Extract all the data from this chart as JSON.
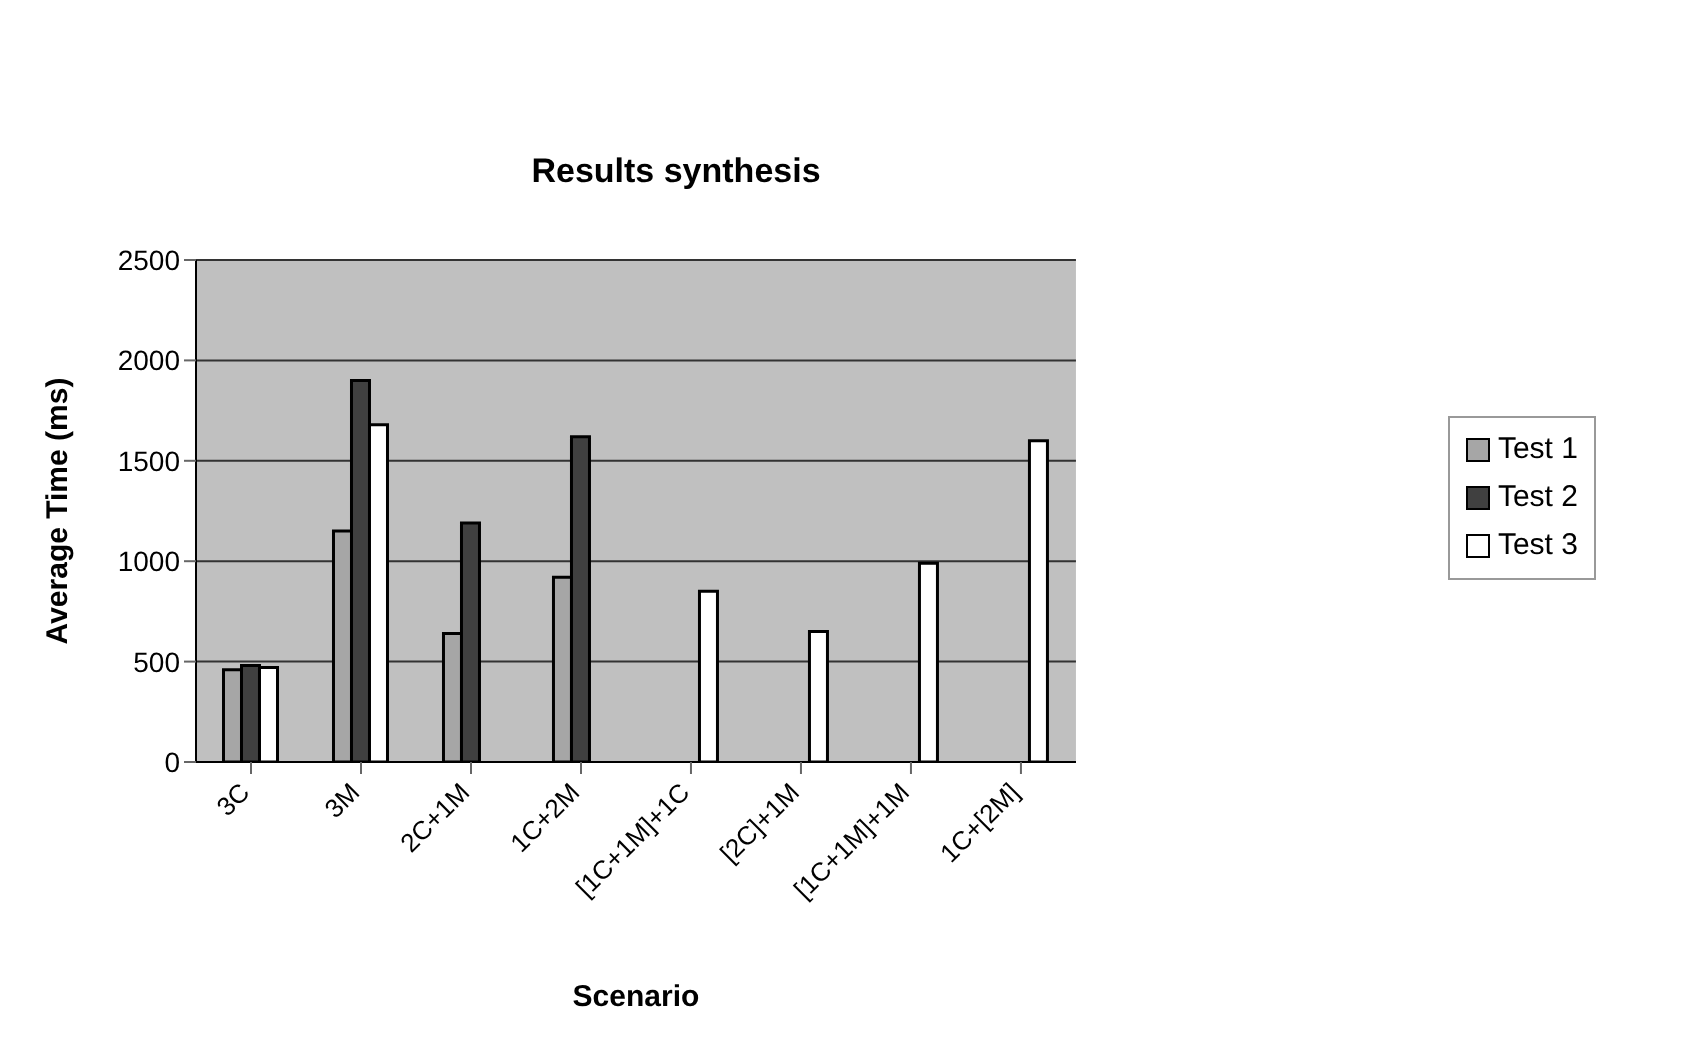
{
  "chart_data": {
    "type": "bar",
    "title": "Results synthesis",
    "xlabel": "Scenario",
    "ylabel": "Average  Time (ms)",
    "categories": [
      "3C",
      "3M",
      "2C+1M",
      "1C+2M",
      "[1C+1M]+1C",
      "[2C]+1M",
      "[1C+1M]+1M",
      "1C+[2M]"
    ],
    "series": [
      {
        "name": "Test 1",
        "color": "#a6a6a6",
        "values": [
          460,
          1150,
          640,
          920,
          null,
          null,
          null,
          null
        ]
      },
      {
        "name": "Test 2",
        "color": "#404040",
        "values": [
          480,
          1900,
          1190,
          1620,
          null,
          null,
          null,
          null
        ]
      },
      {
        "name": "Test 3",
        "color": "#ffffff",
        "values": [
          470,
          1680,
          null,
          null,
          850,
          650,
          990,
          1600
        ]
      }
    ],
    "ylim": [
      0,
      2500
    ],
    "yticks": [
      0,
      500,
      1000,
      1500,
      2000,
      2500
    ],
    "grid": "y",
    "legend": "right"
  }
}
